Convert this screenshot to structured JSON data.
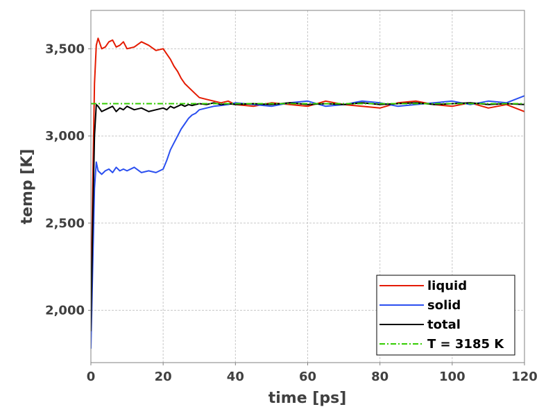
{
  "chart_data": {
    "type": "line",
    "title": "",
    "xlabel": "time [ps]",
    "ylabel": "temp [K]",
    "xlim": [
      0,
      120
    ],
    "ylim": [
      1700,
      3720
    ],
    "x_ticks": [
      0,
      20,
      40,
      60,
      80,
      100,
      120
    ],
    "x_tick_labels": [
      "0",
      "20",
      "40",
      "60",
      "80",
      "100",
      "120"
    ],
    "y_ticks": [
      2000,
      2500,
      3000,
      3500
    ],
    "y_tick_labels": [
      "2,000",
      "2,500",
      "3,000",
      "3,500"
    ],
    "grid": true,
    "legend_position": "bottom-right",
    "series": [
      {
        "name": "liquid",
        "color": "#e41a00",
        "style": "solid",
        "x": [
          0,
          0.5,
          1,
          1.5,
          2,
          3,
          4,
          5,
          6,
          7,
          8,
          9,
          10,
          12,
          14,
          16,
          18,
          20,
          21,
          22,
          23,
          24,
          25,
          26,
          27,
          28,
          29,
          30,
          32,
          34,
          36,
          38,
          40,
          45,
          50,
          55,
          60,
          65,
          70,
          75,
          80,
          85,
          90,
          95,
          100,
          105,
          110,
          115,
          120
        ],
        "values": [
          1950,
          2700,
          3300,
          3520,
          3560,
          3500,
          3510,
          3540,
          3550,
          3510,
          3520,
          3540,
          3500,
          3510,
          3540,
          3520,
          3490,
          3500,
          3470,
          3440,
          3400,
          3370,
          3330,
          3300,
          3280,
          3260,
          3240,
          3220,
          3210,
          3200,
          3190,
          3200,
          3180,
          3170,
          3190,
          3180,
          3170,
          3200,
          3180,
          3170,
          3160,
          3190,
          3200,
          3180,
          3170,
          3190,
          3160,
          3180,
          3140
        ]
      },
      {
        "name": "solid",
        "color": "#2a4ff0",
        "style": "solid",
        "x": [
          0,
          0.5,
          1,
          1.5,
          2,
          3,
          4,
          5,
          6,
          7,
          8,
          9,
          10,
          12,
          14,
          16,
          18,
          20,
          21,
          22,
          23,
          24,
          25,
          26,
          27,
          28,
          29,
          30,
          32,
          34,
          36,
          38,
          40,
          45,
          50,
          55,
          60,
          65,
          70,
          75,
          80,
          85,
          90,
          95,
          100,
          105,
          110,
          115,
          120
        ],
        "values": [
          1780,
          2250,
          2700,
          2850,
          2800,
          2780,
          2800,
          2810,
          2790,
          2820,
          2800,
          2810,
          2800,
          2820,
          2790,
          2800,
          2790,
          2810,
          2860,
          2920,
          2960,
          3000,
          3040,
          3070,
          3100,
          3120,
          3130,
          3150,
          3160,
          3170,
          3175,
          3180,
          3190,
          3180,
          3170,
          3190,
          3200,
          3170,
          3180,
          3200,
          3190,
          3170,
          3180,
          3190,
          3200,
          3180,
          3200,
          3190,
          3230
        ]
      },
      {
        "name": "total",
        "color": "#000000",
        "style": "solid",
        "x": [
          0,
          0.5,
          1,
          1.5,
          2,
          3,
          4,
          5,
          6,
          7,
          8,
          9,
          10,
          12,
          14,
          16,
          18,
          20,
          21,
          22,
          23,
          24,
          25,
          26,
          27,
          28,
          29,
          30,
          32,
          34,
          36,
          38,
          40,
          45,
          50,
          55,
          60,
          65,
          70,
          75,
          80,
          85,
          90,
          95,
          100,
          105,
          110,
          115,
          120
        ],
        "values": [
          1880,
          2500,
          3000,
          3180,
          3170,
          3140,
          3150,
          3160,
          3170,
          3140,
          3160,
          3150,
          3170,
          3150,
          3160,
          3140,
          3150,
          3160,
          3150,
          3170,
          3160,
          3170,
          3180,
          3170,
          3180,
          3175,
          3180,
          3185,
          3180,
          3190,
          3180,
          3185,
          3180,
          3185,
          3180,
          3190,
          3180,
          3185,
          3180,
          3190,
          3180,
          3185,
          3190,
          3180,
          3185,
          3190,
          3180,
          3185,
          3180
        ]
      },
      {
        "name": "T = 3185 K",
        "color": "#33cc00",
        "style": "dashdot",
        "x": [
          0,
          120
        ],
        "values": [
          3185,
          3185
        ]
      }
    ]
  }
}
